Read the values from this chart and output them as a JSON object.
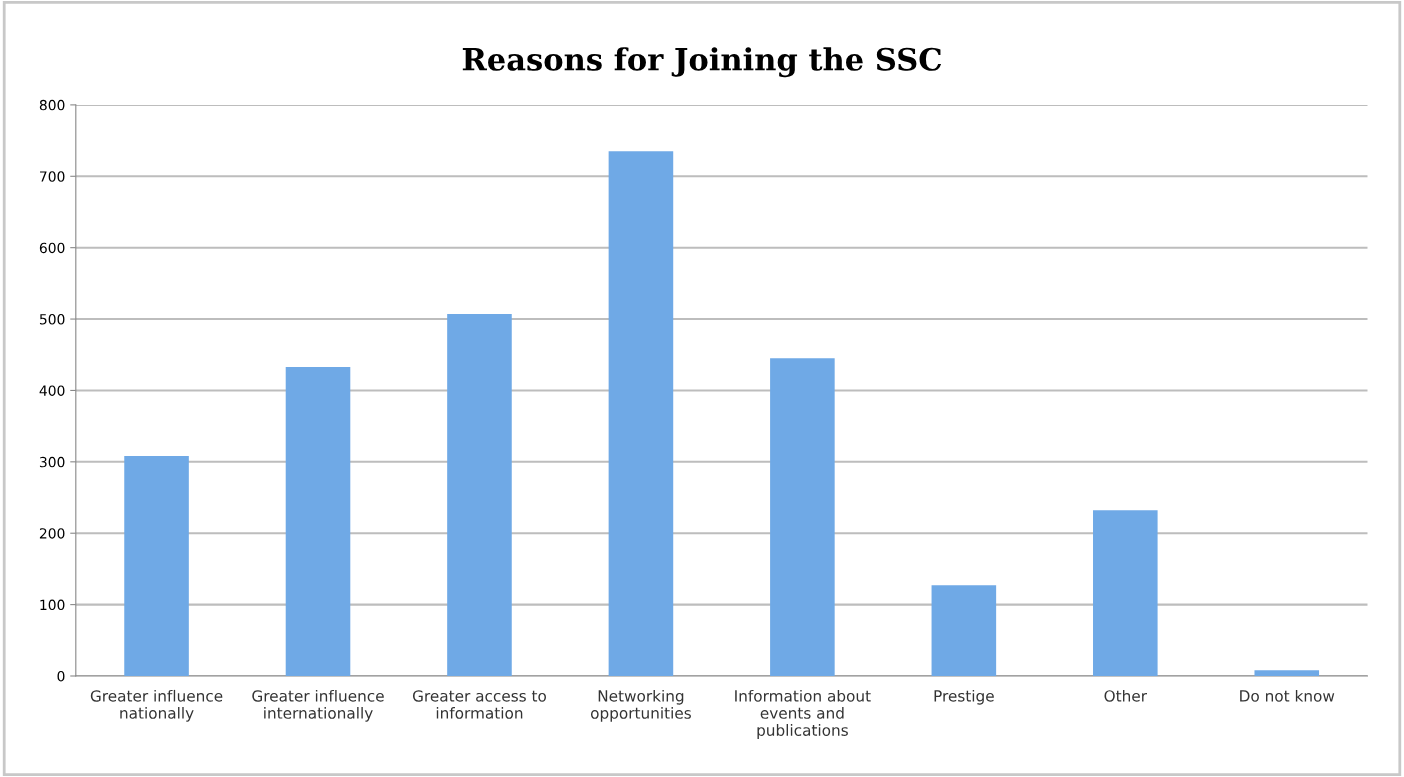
{
  "chart_data": {
    "type": "bar",
    "title": "Reasons for Joining the SSC",
    "categories": [
      "Greater influence\nnationally",
      "Greater influence\ninternationally",
      "Greater access to\ninformation",
      "Networking\nopportunities",
      "Information about\nevents and\npublications",
      "Prestige",
      "Other",
      "Do not know"
    ],
    "values": [
      308,
      433,
      507,
      735,
      445,
      127,
      232,
      8
    ],
    "color": "#6fa9e6",
    "ylim": [
      0,
      800
    ],
    "yticks": [
      0,
      100,
      200,
      300,
      400,
      500,
      600,
      700,
      800
    ],
    "grid": "y"
  }
}
